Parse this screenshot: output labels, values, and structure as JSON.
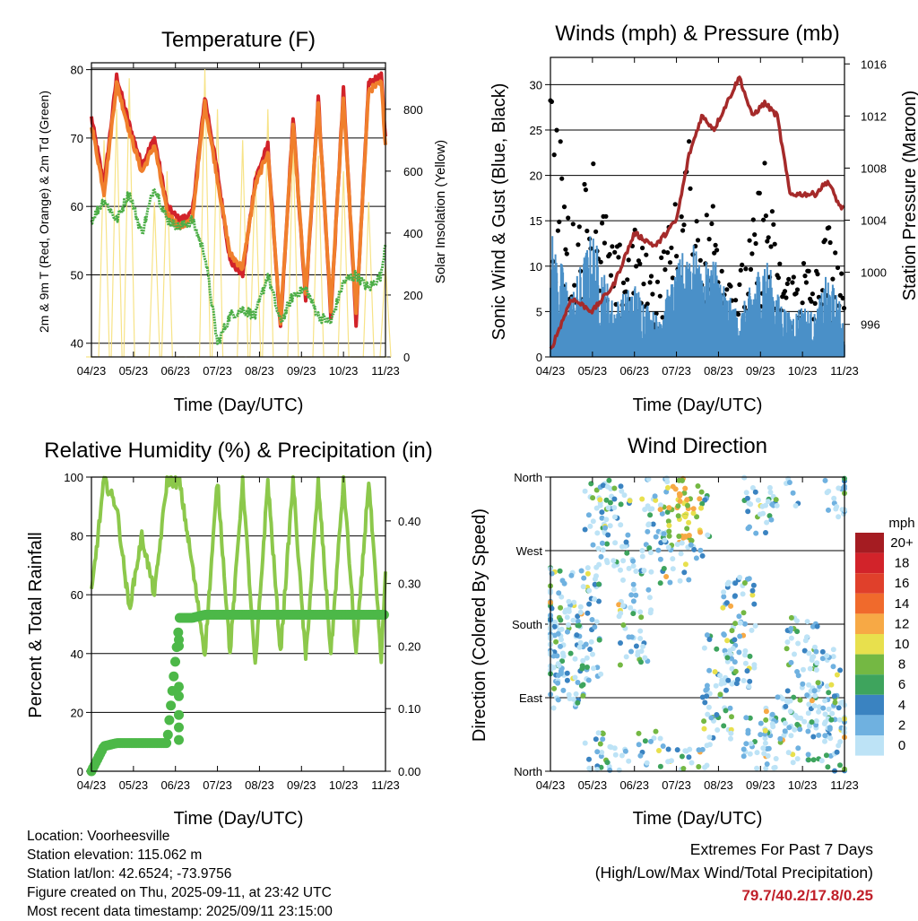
{
  "x_ticks": [
    "04/23",
    "05/23",
    "06/23",
    "07/23",
    "08/23",
    "09/23",
    "10/23",
    "11/23"
  ],
  "temperature": {
    "title": "Temperature (F)",
    "xlabel": "Time (Day/UTC)",
    "ylabel": "2m & 9m T (Red, Orange) & 2m Td (Green)",
    "y2label": "Solar Insolation (Yellow)",
    "yticks": [
      "40",
      "50",
      "60",
      "70",
      "80"
    ],
    "y2ticks": [
      "0",
      "200",
      "400",
      "600",
      "800"
    ]
  },
  "winds": {
    "title": "Winds (mph) & Pressure (mb)",
    "xlabel": "Time (Day/UTC)",
    "ylabel": "Sonic Wind & Gust (Blue, Black)",
    "y2label": "Station Pressure (Maroon)",
    "yticks": [
      "0",
      "5",
      "10",
      "15",
      "20",
      "25",
      "30"
    ],
    "y2ticks": [
      "996",
      "1000",
      "1004",
      "1008",
      "1012",
      "1016"
    ]
  },
  "humidity": {
    "title": "Relative Humidity (%) & Precipitation (in)",
    "xlabel": "Time (Day/UTC)",
    "ylabel": "Percent & Total Rainfall",
    "yticks": [
      "0",
      "20",
      "40",
      "60",
      "80",
      "100"
    ],
    "y2ticks": [
      "0.00",
      "0.10",
      "0.20",
      "0.30",
      "0.40"
    ]
  },
  "direction": {
    "title": "Wind Direction",
    "xlabel": "Time (Day/UTC)",
    "ylabel": "Direction (Colored By Speed)",
    "yticks": [
      "North",
      "East",
      "South",
      "West",
      "North"
    ],
    "legend_title": "mph",
    "legend_labels": [
      "20+",
      "18",
      "16",
      "14",
      "12",
      "10",
      "8",
      "6",
      "4",
      "2",
      "0"
    ],
    "legend_colors": [
      "#a51c22",
      "#d2232a",
      "#e0402b",
      "#f06a2c",
      "#f7a945",
      "#e8e04d",
      "#74b843",
      "#3ea45d",
      "#3a83c1",
      "#6fb1e0",
      "#bde3f6"
    ]
  },
  "info": {
    "location": "Location: Voorheesville",
    "elevation": "Station elevation: 115.062 m",
    "latlon": "Station lat/lon: 42.6524; -73.9756",
    "created": "Figure created on Thu, 2025-09-11, at 23:42 UTC",
    "recent": "Most recent data timestamp: 2025/09/11 23:15:00"
  },
  "extremes": {
    "line1": "Extremes For Past 7 Days",
    "line2": "(High/Low/Max Wind/Total Precipitation)",
    "values": "79.7/40.2/17.8/0.25"
  },
  "chart_data": [
    {
      "type": "line",
      "title": "Temperature (F)",
      "xlabel": "Time (Day/UTC)",
      "ylabel": "2m & 9m T (Red, Orange) & 2m Td (Green)",
      "y2label": "Solar Insolation (Yellow)",
      "ylim": [
        38,
        81
      ],
      "y2lim": [
        0,
        950
      ],
      "x": [
        0,
        0.3,
        0.6,
        0.9,
        1.2,
        1.5,
        1.8,
        2.1,
        2.4,
        2.7,
        3.0,
        3.3,
        3.6,
        3.9,
        4.2,
        4.5,
        4.8,
        5.1,
        5.4,
        5.7,
        6.0,
        6.3,
        6.6,
        6.9,
        7.0
      ],
      "series": [
        {
          "name": "2m T",
          "color": "#d2232a",
          "values": [
            73,
            63,
            79,
            72,
            66,
            70,
            60,
            58,
            59,
            76,
            65,
            52,
            50,
            64,
            69,
            42,
            73,
            46,
            76,
            44,
            77,
            43,
            78,
            79,
            70
          ]
        },
        {
          "name": "9m T",
          "color": "#f07f2c",
          "values": [
            72,
            62,
            78,
            71,
            65,
            69,
            59,
            57,
            58,
            75,
            64,
            53,
            51,
            63,
            68,
            43,
            72,
            47,
            75,
            45,
            76,
            44,
            77,
            78,
            69
          ]
        },
        {
          "name": "2m Td",
          "color": "#4cae47",
          "values": [
            58,
            61,
            58,
            62,
            56,
            63,
            58,
            57,
            58,
            53,
            40,
            44,
            45,
            44,
            50,
            43,
            47,
            48,
            44,
            43,
            49,
            50,
            48,
            50,
            55
          ]
        },
        {
          "name": "Solar Insolation",
          "color": "#f6e07a",
          "values": [
            0,
            700,
            800,
            900,
            0,
            500,
            600,
            0,
            0,
            930,
            800,
            0,
            700,
            600,
            800,
            0,
            700,
            0,
            650,
            0,
            600,
            0,
            500,
            0,
            300
          ]
        }
      ]
    },
    {
      "type": "line",
      "title": "Winds (mph) & Pressure (mb)",
      "xlabel": "Time (Day/UTC)",
      "ylabel": "Sonic Wind & Gust (Blue, Black)",
      "y2label": "Station Pressure (Maroon)",
      "ylim": [
        0,
        33
      ],
      "y2lim": [
        993.5,
        1016.5
      ],
      "x": [
        0,
        0.5,
        1.0,
        1.5,
        2.0,
        2.5,
        3.0,
        3.3,
        3.6,
        3.9,
        4.2,
        4.5,
        4.8,
        5.1,
        5.4,
        5.7,
        6.0,
        6.3,
        6.6,
        6.9,
        7.0
      ],
      "series": [
        {
          "name": "Gust",
          "color": "#000000",
          "values": [
            28,
            12,
            20,
            10,
            12,
            8,
            15,
            20,
            13,
            16,
            10,
            8,
            12,
            20,
            10,
            8,
            10,
            8,
            13,
            9,
            5
          ]
        },
        {
          "name": "Sonic Wind",
          "color": "#4a90c8",
          "values": [
            12,
            6,
            12,
            5,
            7,
            4,
            8,
            12,
            8,
            10,
            6,
            4,
            7,
            10,
            6,
            4,
            5,
            4,
            8,
            5,
            3
          ]
        },
        {
          "name": "Station Pressure",
          "color": "#a52a2a",
          "values": [
            994,
            998,
            997,
            999,
            1003,
            1002,
            1004,
            1009,
            1012,
            1011,
            1013,
            1015,
            1012,
            1013,
            1012,
            1006,
            1006,
            1006,
            1007,
            1005,
            1005
          ]
        }
      ]
    },
    {
      "type": "line",
      "title": "Relative Humidity (%) & Precipitation (in)",
      "xlabel": "Time (Day/UTC)",
      "ylabel": "Percent & Total Rainfall",
      "ylim": [
        0,
        100
      ],
      "y2lim": [
        0.0,
        0.47
      ],
      "x": [
        0,
        0.3,
        0.6,
        0.9,
        1.2,
        1.5,
        1.8,
        2.1,
        2.4,
        2.7,
        3.0,
        3.3,
        3.6,
        3.9,
        4.2,
        4.5,
        4.8,
        5.1,
        5.4,
        5.7,
        6.0,
        6.3,
        6.6,
        6.9,
        7.0
      ],
      "series": [
        {
          "name": "Relative Humidity",
          "color": "#8cc84b",
          "values": [
            60,
            99,
            90,
            55,
            80,
            60,
            99,
            98,
            70,
            40,
            99,
            40,
            99,
            35,
            99,
            40,
            99,
            38,
            98,
            40,
            99,
            40,
            99,
            37,
            68
          ]
        },
        {
          "name": "Total Precipitation",
          "color": "#4cb848",
          "values": [
            0,
            0.04,
            0.045,
            0.045,
            0.045,
            0.045,
            0.045,
            0.245,
            0.245,
            0.25,
            0.25,
            0.25,
            0.25,
            0.25,
            0.25,
            0.25,
            0.25,
            0.25,
            0.25,
            0.25,
            0.25,
            0.25,
            0.25,
            0.25,
            0.25
          ]
        }
      ]
    },
    {
      "type": "scatter",
      "title": "Wind Direction",
      "xlabel": "Time (Day/UTC)",
      "ylabel": "Direction (Colored By Speed)",
      "ylim": [
        0,
        360
      ],
      "series": [
        {
          "name": "Wind Direction",
          "values": [
            [
              0.0,
              180
            ],
            [
              0.4,
              140
            ],
            [
              0.8,
              180
            ],
            [
              1.2,
              340
            ],
            [
              1.5,
              320
            ],
            [
              2.0,
              200
            ],
            [
              2.5,
              340
            ],
            [
              3.0,
              300
            ],
            [
              3.4,
              330
            ],
            [
              4.0,
              100
            ],
            [
              4.5,
              170
            ],
            [
              5.0,
              360
            ],
            [
              5.5,
              30
            ],
            [
              6.0,
              120
            ],
            [
              6.5,
              80
            ],
            [
              6.9,
              20
            ]
          ]
        }
      ]
    }
  ]
}
